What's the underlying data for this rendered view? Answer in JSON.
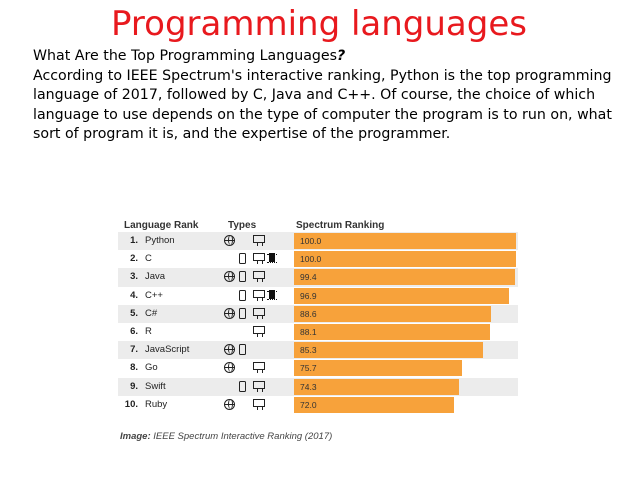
{
  "slide": {
    "title": "Programming languages",
    "question": "What Are the Top Programming Languages",
    "question_mark": "?",
    "paragraph": "According to IEEE Spectrum's interactive ranking, Python is the top programming language of 2017, followed by C, Java and C++. Of course, the choice of which language to use depends on the type of computer the program is to run on, what sort of program it is, and the expertise of the programmer."
  },
  "chart_data": {
    "type": "bar",
    "orientation": "horizontal",
    "headers": {
      "language": "Language Rank",
      "types": "Types",
      "ranking": "Spectrum Ranking"
    },
    "xlim": [
      0,
      100
    ],
    "bar_color": "#f7a23b",
    "rows": [
      {
        "rank": "1.",
        "name": "Python",
        "value": 100.0,
        "label": "100.0",
        "types": [
          "web-icon",
          "desktop-icon"
        ]
      },
      {
        "rank": "2.",
        "name": "C",
        "value": 100.0,
        "label": "100.0",
        "types": [
          "mobile-icon",
          "desktop-icon",
          "embedded-icon"
        ]
      },
      {
        "rank": "3.",
        "name": "Java",
        "value": 99.4,
        "label": "99.4",
        "types": [
          "web-icon",
          "mobile-icon",
          "desktop-icon"
        ]
      },
      {
        "rank": "4.",
        "name": "C++",
        "value": 96.9,
        "label": "96.9",
        "types": [
          "mobile-icon",
          "desktop-icon",
          "embedded-icon"
        ]
      },
      {
        "rank": "5.",
        "name": "C#",
        "value": 88.6,
        "label": "88.6",
        "types": [
          "web-icon",
          "mobile-icon",
          "desktop-icon"
        ]
      },
      {
        "rank": "6.",
        "name": "R",
        "value": 88.1,
        "label": "88.1",
        "types": [
          "desktop-icon"
        ]
      },
      {
        "rank": "7.",
        "name": "JavaScript",
        "value": 85.3,
        "label": "85.3",
        "types": [
          "web-icon",
          "mobile-icon"
        ]
      },
      {
        "rank": "8.",
        "name": "Go",
        "value": 75.7,
        "label": "75.7",
        "types": [
          "web-icon",
          "desktop-icon"
        ]
      },
      {
        "rank": "9.",
        "name": "Swift",
        "value": 74.3,
        "label": "74.3",
        "types": [
          "mobile-icon",
          "desktop-icon"
        ]
      },
      {
        "rank": "10.",
        "name": "Ruby",
        "value": 72.0,
        "label": "72.0",
        "types": [
          "web-icon",
          "desktop-icon"
        ]
      }
    ],
    "caption_prefix": "Image:",
    "caption": "IEEE Spectrum Interactive Ranking (2017)"
  }
}
